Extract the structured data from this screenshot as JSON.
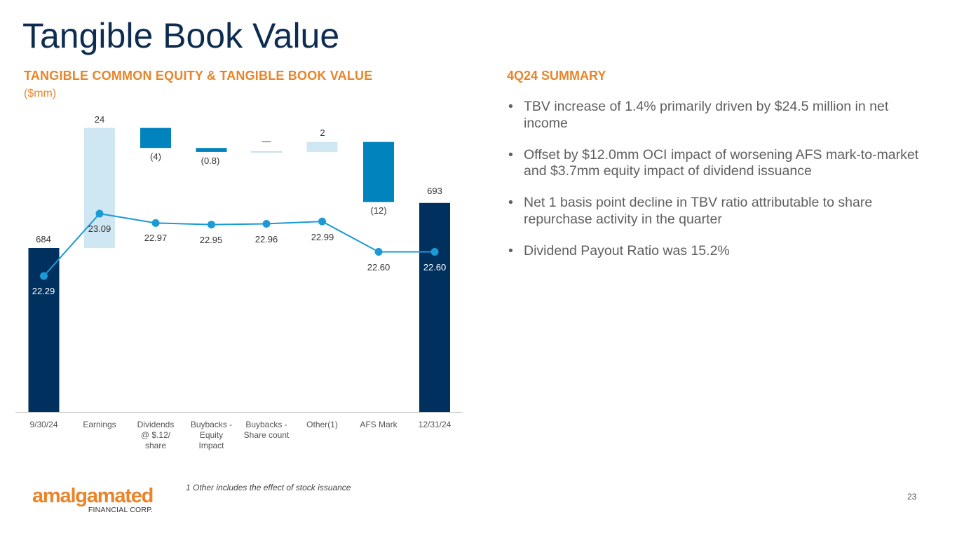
{
  "page": {
    "title": "Tangible Book Value",
    "page_number": "23",
    "footnote": "1 Other includes the effect of stock issuance",
    "logo": {
      "word": "amalgamated",
      "sub": "FINANCIAL CORP."
    }
  },
  "chart_section": {
    "title": "TANGIBLE COMMON EQUITY & TANGIBLE BOOK VALUE",
    "unit": "($mm)"
  },
  "summary": {
    "title": "4Q24 SUMMARY",
    "bullets": [
      "TBV increase of 1.4% primarily driven by $24.5 million in net income",
      "Offset by $12.0mm OCI impact of worsening AFS mark-to-market and $3.7mm equity impact of dividend issuance",
      "Net 1 basis point decline in TBV ratio attributable to share repurchase activity in the quarter",
      "Dividend Payout Ratio was 15.2%"
    ]
  },
  "chart_data": {
    "type": "bar",
    "subtype": "waterfall with line overlay",
    "categories": [
      "9/30/24",
      "Earnings",
      "Dividends @ $.12/ share",
      "Buybacks - Equity Impact",
      "Buybacks - Share count",
      "Other(1)",
      "AFS Mark",
      "12/31/24"
    ],
    "category_lines": [
      [
        "9/30/24"
      ],
      [
        "Earnings"
      ],
      [
        "Dividends",
        "@ $.12/",
        "share"
      ],
      [
        "Buybacks -",
        "Equity",
        "Impact"
      ],
      [
        "Buybacks -",
        "Share count"
      ],
      [
        "Other(1)"
      ],
      [
        "AFS Mark"
      ],
      [
        "12/31/24"
      ]
    ],
    "series": [
      {
        "kind": "waterfall",
        "bar_types": [
          "total",
          "increase",
          "decrease",
          "decrease",
          "neutral",
          "increase",
          "decrease",
          "total"
        ],
        "starts": [
          0,
          684,
          708,
          704,
          703.2,
          703.2,
          705.2,
          0
        ],
        "ends": [
          684,
          708,
          704,
          703.2,
          703.2,
          705.2,
          693.2,
          693
        ],
        "labels": [
          "684",
          "24",
          "(4)",
          "(0.8)",
          "—",
          "2",
          "(12)",
          "693"
        ]
      },
      {
        "kind": "line",
        "values": [
          22.29,
          23.09,
          22.97,
          22.95,
          22.96,
          22.99,
          22.6,
          22.6
        ],
        "labels": [
          "22.29",
          "23.09",
          "22.97",
          "22.95",
          "22.96",
          "22.99",
          "22.60",
          "22.60"
        ]
      }
    ],
    "colors": {
      "total": "#00305e",
      "increase": "#cfe7f3",
      "decrease": "#0183bd",
      "line": "#1b9ad6"
    },
    "grid": false,
    "legend": "none"
  }
}
